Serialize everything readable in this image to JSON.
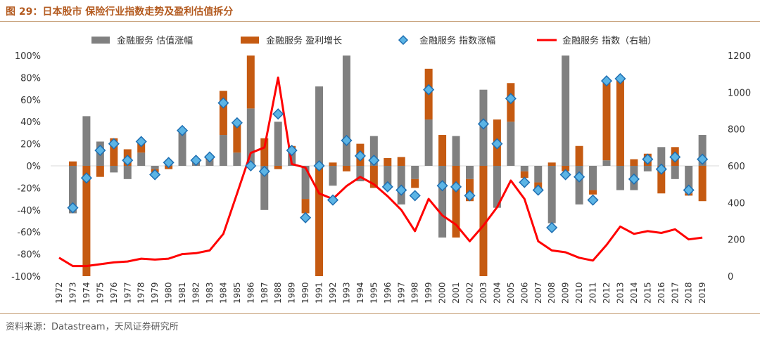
{
  "figure_title": "图 29：日本股市 保险行业指数走势及盈利估值拆分",
  "source": "资料来源：Datastream，天风证券研究所",
  "colors": {
    "valuation": "#808080",
    "earnings": "#c55a11",
    "index_change_fill": "#5bb4e5",
    "index_change_stroke": "#1f6fb2",
    "index_line": "#ff0000",
    "title": "#b35a1f"
  },
  "chart_data": {
    "type": "bar",
    "title": "",
    "legend_position": "top",
    "grid": false,
    "categories": [
      "1972",
      "1973",
      "1974",
      "1975",
      "1976",
      "1977",
      "1978",
      "1979",
      "1980",
      "1981",
      "1982",
      "1983",
      "1984",
      "1985",
      "1986",
      "1987",
      "1988",
      "1989",
      "1990",
      "1991",
      "1992",
      "1993",
      "1994",
      "1995",
      "1996",
      "1997",
      "1998",
      "1999",
      "2000",
      "2001",
      "2002",
      "2003",
      "2004",
      "2005",
      "2006",
      "2007",
      "2008",
      "2009",
      "2010",
      "2011",
      "2012",
      "2013",
      "2014",
      "2015",
      "2016",
      "2017",
      "2018",
      "2019"
    ],
    "y_left": {
      "lim": [
        -100,
        100
      ],
      "ticks": [
        "100%",
        "80%",
        "60%",
        "40%",
        "20%",
        "0%",
        "-20%",
        "-40%",
        "-60%",
        "-80%",
        "-100%"
      ]
    },
    "y_right": {
      "lim": [
        0,
        1200
      ],
      "ticks": [
        "1200",
        "1000",
        "800",
        "600",
        "400",
        "200",
        "0"
      ]
    },
    "series": [
      {
        "name": "金融服务 估值涨幅",
        "type": "stacked_bar",
        "values": [
          0,
          -43,
          45,
          22,
          -6,
          -12,
          12,
          -3,
          4,
          30,
          4,
          5,
          28,
          12,
          52,
          -40,
          40,
          12,
          -30,
          72,
          -18,
          100,
          -14,
          27,
          -20,
          -35,
          -12,
          42,
          -65,
          27,
          -12,
          69,
          -38,
          40,
          -5,
          -15,
          -52,
          100,
          -35,
          -22,
          5,
          -22,
          -22,
          -5,
          17,
          -12,
          -25,
          28
        ]
      },
      {
        "name": "金融服务 盈利增长",
        "type": "stacked_bar",
        "values": [
          0,
          4,
          -100,
          -10,
          25,
          15,
          10,
          -3,
          -3,
          3,
          2,
          3,
          40,
          27,
          48,
          25,
          -3,
          6,
          -13,
          -100,
          3,
          -5,
          20,
          -20,
          7,
          8,
          -8,
          46,
          28,
          -65,
          -20,
          -100,
          42,
          35,
          -6,
          -7,
          3,
          -5,
          18,
          -4,
          72,
          80,
          6,
          11,
          -25,
          17,
          -2,
          -32
        ]
      },
      {
        "name": "金融服务 指数涨幅",
        "type": "scatter",
        "values": [
          null,
          -38,
          -11,
          14,
          20,
          5,
          22,
          -8,
          3,
          32,
          5,
          8,
          57,
          39,
          0,
          -5,
          47,
          14,
          -47,
          0,
          -31,
          23,
          9,
          5,
          -19,
          -22,
          -27,
          69,
          -18,
          -19,
          -27,
          38,
          20,
          61,
          -15,
          -22,
          -56,
          -8,
          -10,
          -31,
          77,
          79,
          -12,
          6,
          -3,
          8,
          -22,
          6
        ]
      },
      {
        "name": "金融服务 指数（右轴）",
        "type": "line",
        "axis": "right",
        "values": [
          100,
          55,
          55,
          65,
          75,
          80,
          95,
          90,
          95,
          120,
          125,
          140,
          230,
          450,
          670,
          700,
          1080,
          610,
          590,
          450,
          420,
          490,
          540,
          500,
          435,
          360,
          245,
          420,
          330,
          280,
          190,
          275,
          375,
          520,
          420,
          190,
          140,
          130,
          100,
          85,
          170,
          270,
          230,
          245,
          235,
          255,
          200,
          210
        ]
      }
    ]
  }
}
